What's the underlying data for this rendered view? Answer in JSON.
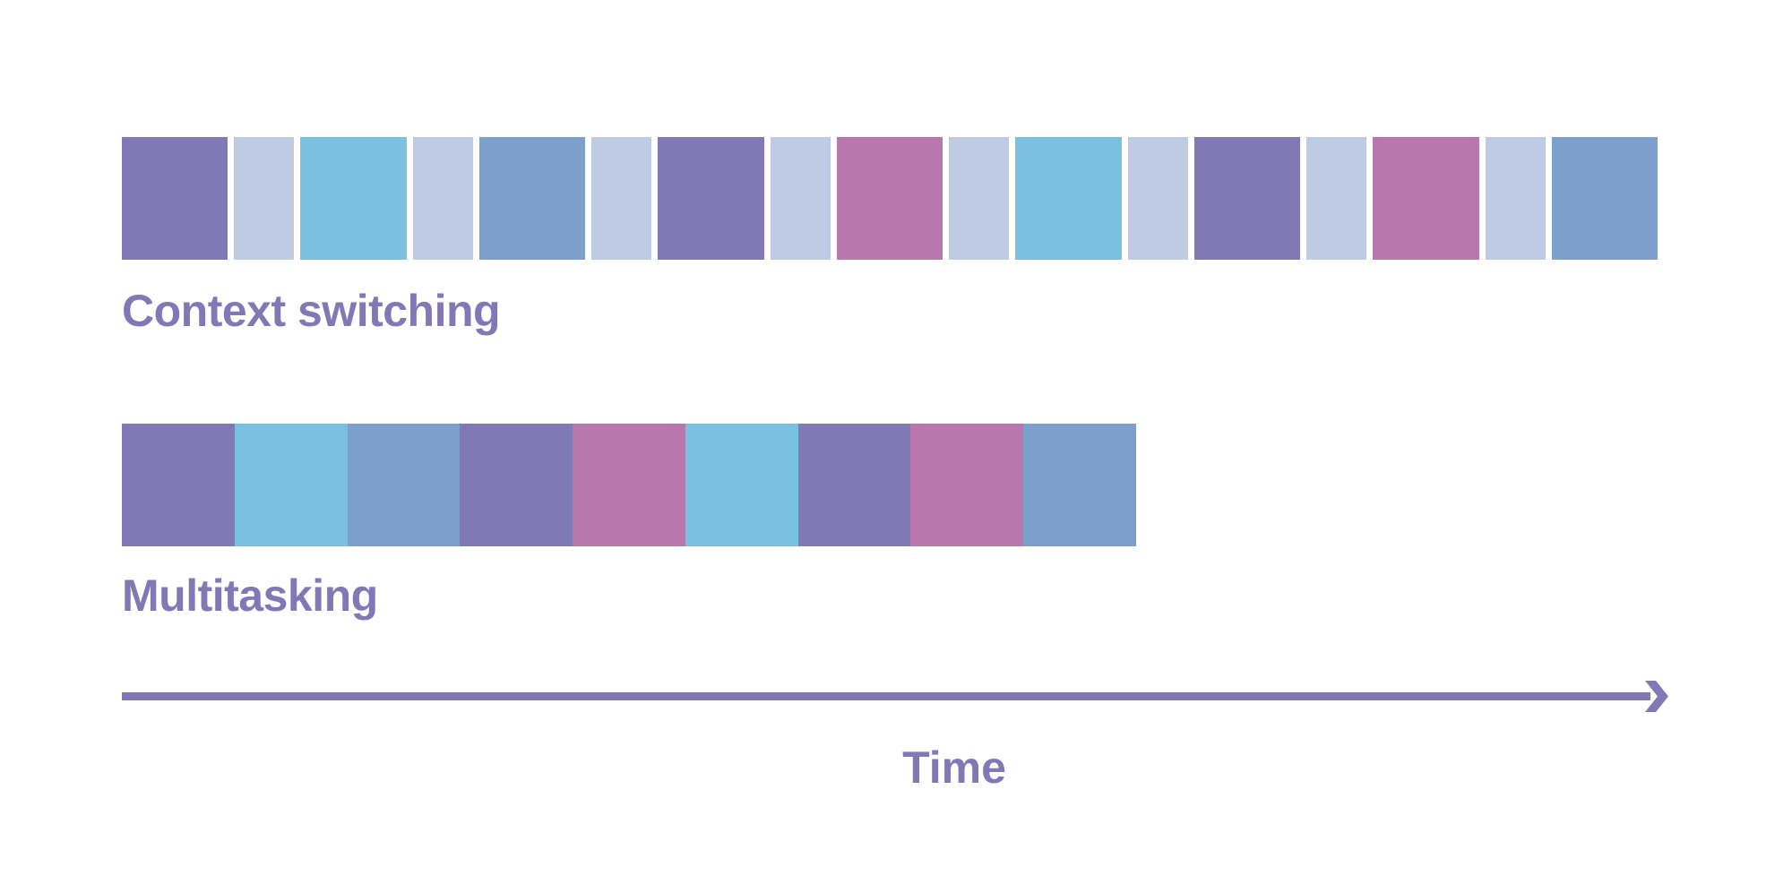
{
  "colors": {
    "purple": "#8179b5",
    "light": "#bfcbe3",
    "cyan": "#79c1df",
    "steel": "#7d9fcb",
    "pink": "#b878ae",
    "text": "#8179b5"
  },
  "context_switching": {
    "label": "Context switching",
    "sequence": [
      "purple",
      "light",
      "cyan",
      "light",
      "steel",
      "light",
      "purple",
      "light",
      "pink",
      "light",
      "cyan",
      "light",
      "purple",
      "light",
      "pink",
      "light",
      "steel"
    ]
  },
  "multitasking": {
    "label": "Multitasking",
    "sequence": [
      "purple",
      "cyan",
      "steel",
      "purple",
      "pink",
      "cyan",
      "purple",
      "pink",
      "steel"
    ]
  },
  "axis": {
    "label": "Time",
    "icon": "arrow-right-icon"
  }
}
